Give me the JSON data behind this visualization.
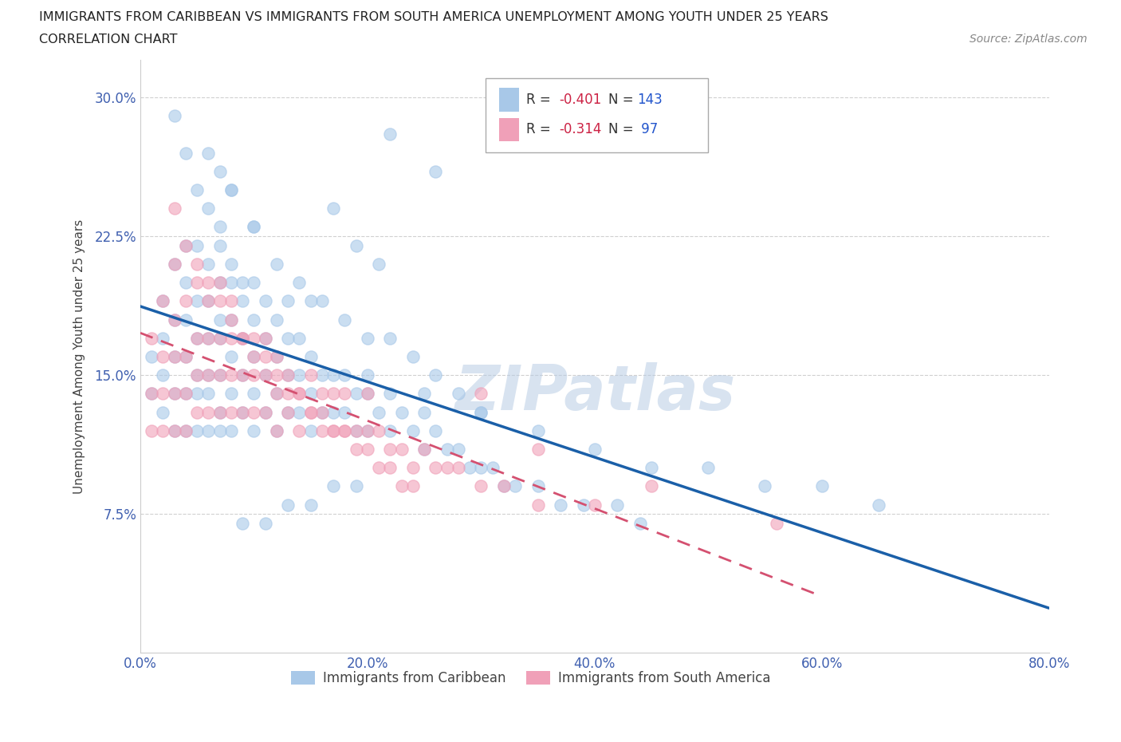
{
  "title_line1": "IMMIGRANTS FROM CARIBBEAN VS IMMIGRANTS FROM SOUTH AMERICA UNEMPLOYMENT AMONG YOUTH UNDER 25 YEARS",
  "title_line2": "CORRELATION CHART",
  "source": "Source: ZipAtlas.com",
  "ylabel": "Unemployment Among Youth under 25 years",
  "xlim": [
    0.0,
    0.8
  ],
  "ylim": [
    0.0,
    0.32
  ],
  "x_ticks": [
    0.0,
    0.2,
    0.4,
    0.6,
    0.8
  ],
  "x_tick_labels": [
    "0.0%",
    "20.0%",
    "40.0%",
    "60.0%",
    "80.0%"
  ],
  "y_ticks": [
    0.075,
    0.15,
    0.225,
    0.3
  ],
  "y_tick_labels": [
    "7.5%",
    "15.0%",
    "22.5%",
    "30.0%"
  ],
  "color_caribbean": "#a8c8e8",
  "color_south_america": "#f0a0b8",
  "watermark": "ZIPatlas",
  "legend_label_caribbean": "Immigrants from Caribbean",
  "legend_label_south_america": "Immigrants from South America",
  "caribbean_scatter_x": [
    0.01,
    0.01,
    0.02,
    0.02,
    0.02,
    0.02,
    0.03,
    0.03,
    0.03,
    0.03,
    0.03,
    0.04,
    0.04,
    0.04,
    0.04,
    0.04,
    0.04,
    0.05,
    0.05,
    0.05,
    0.05,
    0.05,
    0.05,
    0.06,
    0.06,
    0.06,
    0.06,
    0.06,
    0.06,
    0.07,
    0.07,
    0.07,
    0.07,
    0.07,
    0.07,
    0.07,
    0.08,
    0.08,
    0.08,
    0.08,
    0.08,
    0.09,
    0.09,
    0.09,
    0.09,
    0.1,
    0.1,
    0.1,
    0.1,
    0.1,
    0.1,
    0.11,
    0.11,
    0.11,
    0.11,
    0.12,
    0.12,
    0.12,
    0.12,
    0.13,
    0.13,
    0.13,
    0.13,
    0.14,
    0.14,
    0.14,
    0.15,
    0.15,
    0.15,
    0.15,
    0.16,
    0.16,
    0.17,
    0.17,
    0.18,
    0.18,
    0.19,
    0.19,
    0.2,
    0.2,
    0.21,
    0.22,
    0.22,
    0.23,
    0.24,
    0.25,
    0.25,
    0.26,
    0.27,
    0.28,
    0.29,
    0.3,
    0.31,
    0.32,
    0.33,
    0.35,
    0.37,
    0.39,
    0.42,
    0.44,
    0.2,
    0.25,
    0.3,
    0.35,
    0.4,
    0.45,
    0.5,
    0.55,
    0.6,
    0.65,
    0.08,
    0.1,
    0.12,
    0.14,
    0.16,
    0.18,
    0.2,
    0.22,
    0.24,
    0.26,
    0.28,
    0.3,
    0.22,
    0.26,
    0.17,
    0.19,
    0.21,
    0.06,
    0.07,
    0.08,
    0.09,
    0.11,
    0.13,
    0.15,
    0.17,
    0.19,
    0.03,
    0.04,
    0.05,
    0.06,
    0.07,
    0.08,
    0.09
  ],
  "caribbean_scatter_y": [
    0.14,
    0.16,
    0.13,
    0.15,
    0.17,
    0.19,
    0.12,
    0.14,
    0.16,
    0.18,
    0.21,
    0.12,
    0.14,
    0.16,
    0.18,
    0.2,
    0.22,
    0.12,
    0.14,
    0.15,
    0.17,
    0.19,
    0.22,
    0.12,
    0.14,
    0.15,
    0.17,
    0.19,
    0.21,
    0.12,
    0.13,
    0.15,
    0.17,
    0.18,
    0.2,
    0.23,
    0.12,
    0.14,
    0.16,
    0.18,
    0.2,
    0.13,
    0.15,
    0.17,
    0.19,
    0.12,
    0.14,
    0.16,
    0.18,
    0.2,
    0.23,
    0.13,
    0.15,
    0.17,
    0.19,
    0.12,
    0.14,
    0.16,
    0.18,
    0.13,
    0.15,
    0.17,
    0.19,
    0.13,
    0.15,
    0.17,
    0.12,
    0.14,
    0.16,
    0.19,
    0.13,
    0.15,
    0.13,
    0.15,
    0.13,
    0.15,
    0.12,
    0.14,
    0.12,
    0.14,
    0.13,
    0.12,
    0.14,
    0.13,
    0.12,
    0.11,
    0.13,
    0.12,
    0.11,
    0.11,
    0.1,
    0.1,
    0.1,
    0.09,
    0.09,
    0.09,
    0.08,
    0.08,
    0.08,
    0.07,
    0.15,
    0.14,
    0.13,
    0.12,
    0.11,
    0.1,
    0.1,
    0.09,
    0.09,
    0.08,
    0.25,
    0.23,
    0.21,
    0.2,
    0.19,
    0.18,
    0.17,
    0.17,
    0.16,
    0.15,
    0.14,
    0.13,
    0.28,
    0.26,
    0.24,
    0.22,
    0.21,
    0.27,
    0.26,
    0.25,
    0.07,
    0.07,
    0.08,
    0.08,
    0.09,
    0.09,
    0.29,
    0.27,
    0.25,
    0.24,
    0.22,
    0.21,
    0.2
  ],
  "south_america_scatter_x": [
    0.01,
    0.01,
    0.01,
    0.02,
    0.02,
    0.02,
    0.02,
    0.03,
    0.03,
    0.03,
    0.03,
    0.03,
    0.04,
    0.04,
    0.04,
    0.04,
    0.05,
    0.05,
    0.05,
    0.05,
    0.06,
    0.06,
    0.06,
    0.06,
    0.07,
    0.07,
    0.07,
    0.07,
    0.08,
    0.08,
    0.08,
    0.08,
    0.09,
    0.09,
    0.09,
    0.1,
    0.1,
    0.1,
    0.11,
    0.11,
    0.11,
    0.12,
    0.12,
    0.12,
    0.13,
    0.13,
    0.14,
    0.14,
    0.15,
    0.15,
    0.16,
    0.16,
    0.17,
    0.17,
    0.18,
    0.18,
    0.19,
    0.2,
    0.2,
    0.21,
    0.22,
    0.23,
    0.24,
    0.25,
    0.26,
    0.27,
    0.28,
    0.3,
    0.32,
    0.35,
    0.03,
    0.04,
    0.05,
    0.06,
    0.07,
    0.08,
    0.09,
    0.1,
    0.11,
    0.12,
    0.13,
    0.14,
    0.15,
    0.16,
    0.17,
    0.18,
    0.19,
    0.2,
    0.21,
    0.22,
    0.23,
    0.24,
    0.56,
    0.4,
    0.45,
    0.3,
    0.35
  ],
  "south_america_scatter_y": [
    0.12,
    0.14,
    0.17,
    0.12,
    0.14,
    0.16,
    0.19,
    0.12,
    0.14,
    0.16,
    0.18,
    0.21,
    0.12,
    0.14,
    0.16,
    0.19,
    0.13,
    0.15,
    0.17,
    0.2,
    0.13,
    0.15,
    0.17,
    0.19,
    0.13,
    0.15,
    0.17,
    0.2,
    0.13,
    0.15,
    0.17,
    0.19,
    0.13,
    0.15,
    0.17,
    0.13,
    0.15,
    0.17,
    0.13,
    0.15,
    0.17,
    0.12,
    0.14,
    0.16,
    0.13,
    0.15,
    0.12,
    0.14,
    0.13,
    0.15,
    0.12,
    0.14,
    0.12,
    0.14,
    0.12,
    0.14,
    0.12,
    0.12,
    0.14,
    0.12,
    0.11,
    0.11,
    0.1,
    0.11,
    0.1,
    0.1,
    0.1,
    0.09,
    0.09,
    0.08,
    0.24,
    0.22,
    0.21,
    0.2,
    0.19,
    0.18,
    0.17,
    0.16,
    0.16,
    0.15,
    0.14,
    0.14,
    0.13,
    0.13,
    0.12,
    0.12,
    0.11,
    0.11,
    0.1,
    0.1,
    0.09,
    0.09,
    0.07,
    0.08,
    0.09,
    0.14,
    0.11
  ]
}
